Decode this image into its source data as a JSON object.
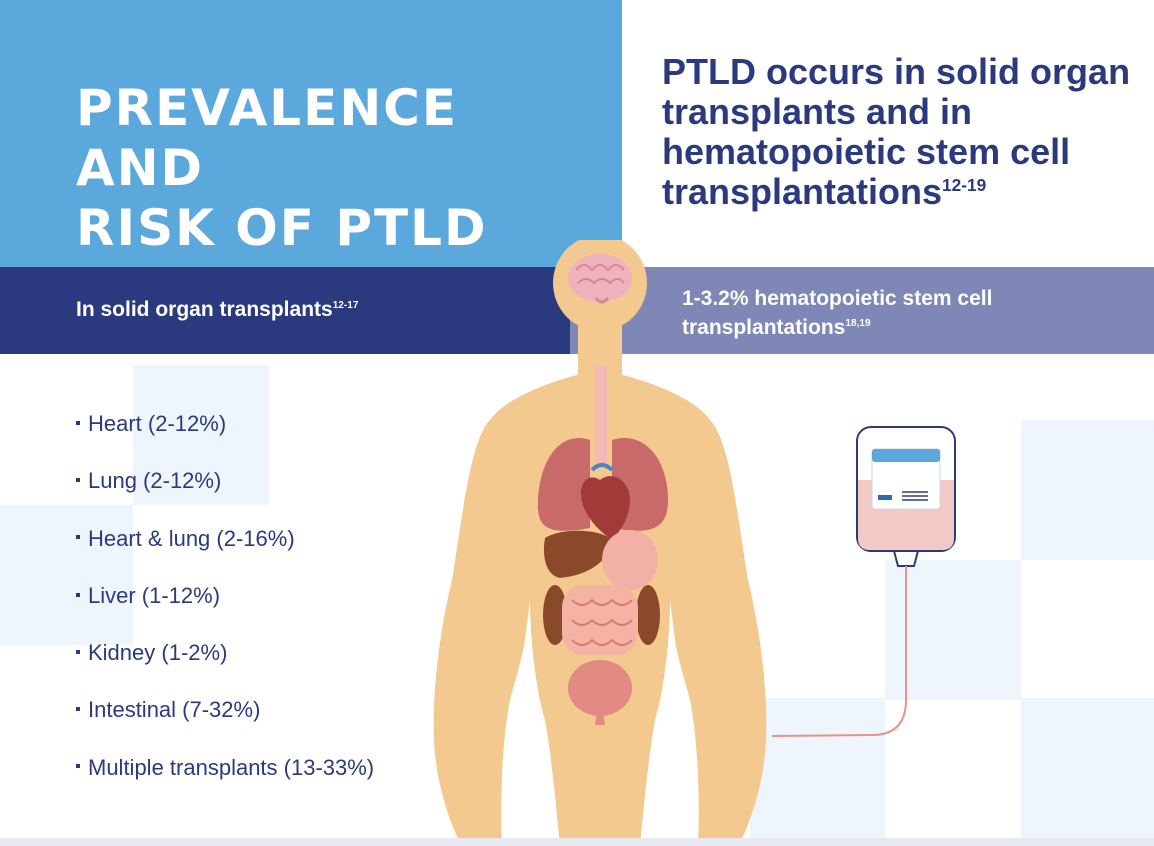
{
  "colors": {
    "hero_blue": "#5aa8dc",
    "navy": "#2b3a7e",
    "lavender": "#7f87b6",
    "skin": "#f3c98f",
    "organ_red": "#c96a6a"
  },
  "header": {
    "title_line1": "PREVALENCE AND",
    "title_line2": "RISK OF PTLD",
    "subhead_text": "PTLD occurs in solid organ transplants and in hematopoietic stem cell transplantations",
    "subhead_ref": "12-19"
  },
  "bands": {
    "solid_text": "In solid organ transplants",
    "solid_ref": "12-17",
    "hsct_text": "1-3.2% hematopoietic stem cell transplantations",
    "hsct_ref": "18,19"
  },
  "organs": [
    {
      "label": "Heart (2-12%)"
    },
    {
      "label": "Lung (2-12%)"
    },
    {
      "label": "Heart & lung (2-16%)"
    },
    {
      "label": "Liver (1-12%)"
    },
    {
      "label": "Kidney (1-2%)"
    },
    {
      "label": "Intestinal (7-32%)"
    },
    {
      "label": "Multiple transplants (13-33%)"
    }
  ],
  "icons": {
    "body": "human-body-organs-icon",
    "iv_bag": "iv-bag-icon"
  }
}
